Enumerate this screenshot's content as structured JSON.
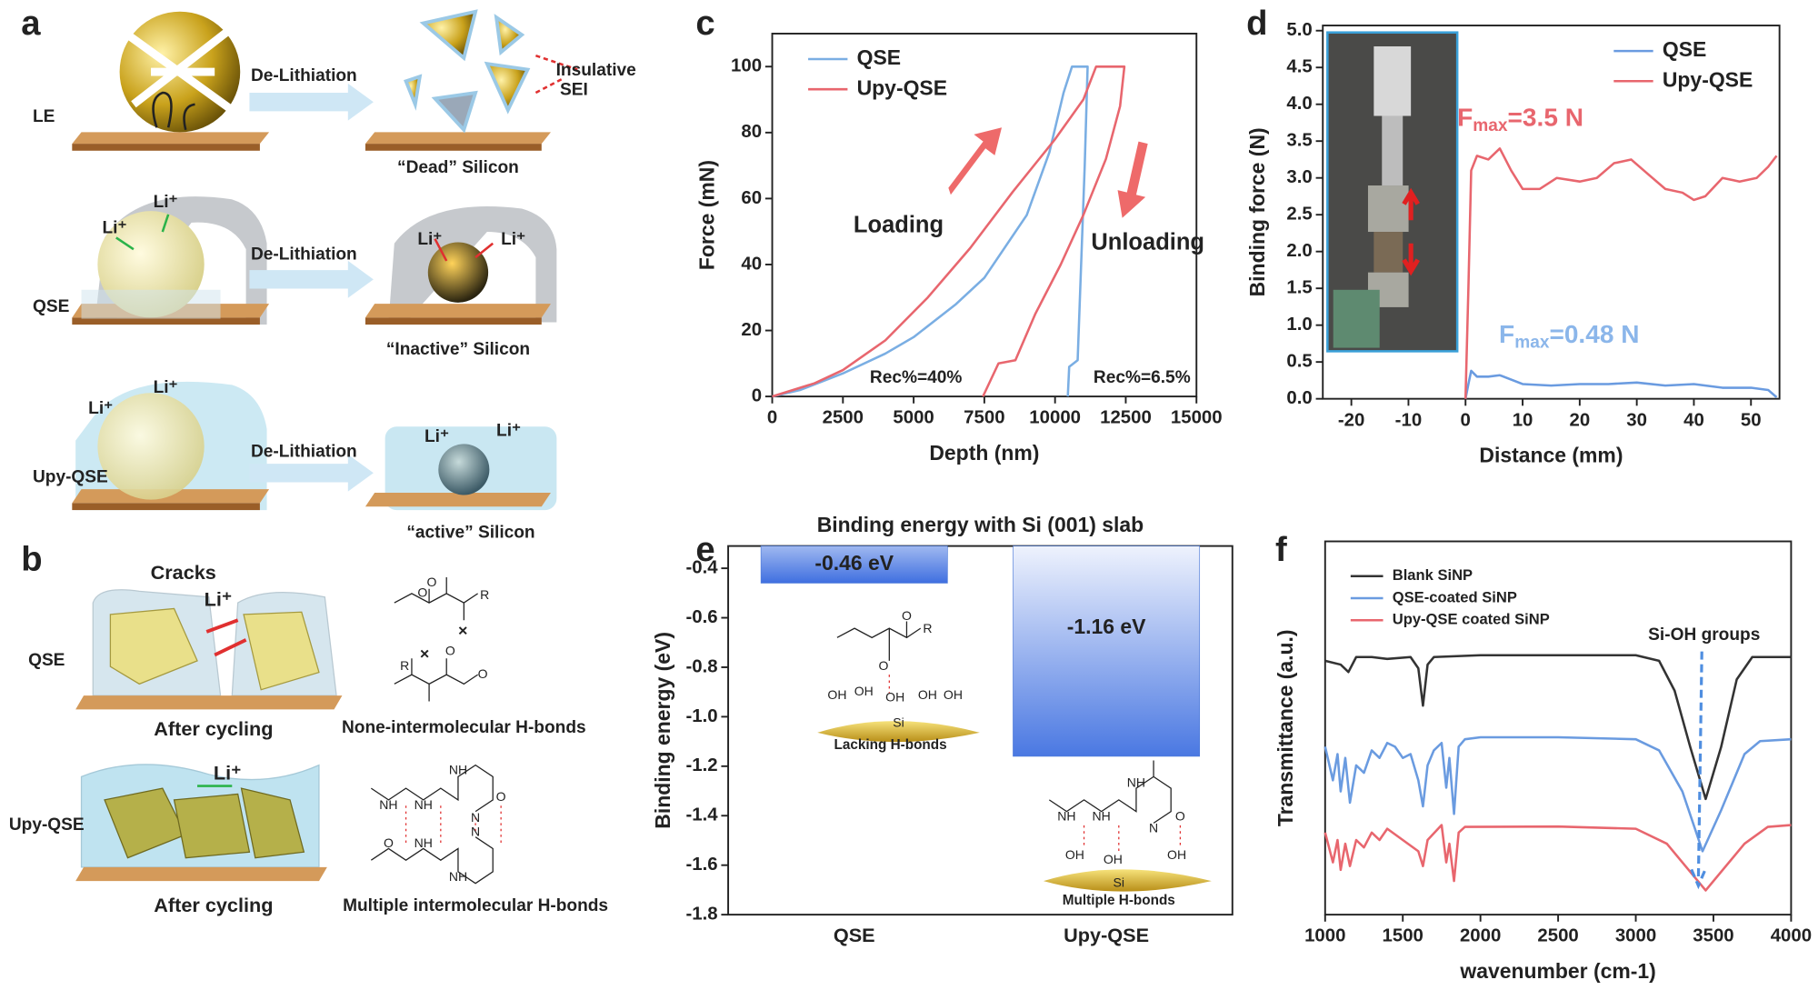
{
  "figure": {
    "a": {
      "label": "a",
      "rows": [
        {
          "name": "LE",
          "process": "De-Lithiation",
          "result": "“Dead” Silicon"
        },
        {
          "name": "QSE",
          "process": "De-Lithiation",
          "result": "“Inactive” Silicon"
        },
        {
          "name": "Upy-QSE",
          "process": "De-Lithiation",
          "result": "“active” Silicon"
        }
      ],
      "sei": "Insulative",
      "sei2": "SEI",
      "ion": "Li⁺"
    },
    "b": {
      "label": "b",
      "cracks": "Cracks",
      "ion": "Li⁺",
      "rows": [
        {
          "name": "QSE",
          "caption": "After cycling",
          "bond": "None-intermolecular H-bonds"
        },
        {
          "name": "Upy-QSE",
          "caption": "After cycling",
          "bond": "Multiple intermolecular H-bonds"
        }
      ],
      "atoms": {
        "O": "O",
        "R": "R",
        "N": "N",
        "NH": "NH"
      }
    }
  },
  "chart_data": [
    {
      "panel": "c",
      "type": "line",
      "xlabel": "Depth (nm)",
      "ylabel": "Force (mN)",
      "xlim": [
        0,
        15000
      ],
      "xticks": [
        0,
        2500,
        5000,
        7500,
        10000,
        12500,
        15000
      ],
      "ylim": [
        0,
        110
      ],
      "yticks": [
        0,
        20,
        40,
        60,
        80,
        100
      ],
      "legend": "upper left",
      "series": [
        {
          "name": "QSE",
          "color": "#7aaee3",
          "x": [
            0,
            1000,
            2500,
            4000,
            5000,
            6500,
            7500,
            9000,
            9800,
            10300,
            10600,
            11150,
            11050,
            10800,
            10500,
            10450
          ],
          "values": [
            0,
            2,
            7,
            13,
            18,
            28,
            36,
            55,
            74,
            92,
            100,
            100,
            70,
            11,
            9,
            0
          ]
        },
        {
          "name": "Upy-QSE",
          "color": "#e8666e",
          "x": [
            0,
            1500,
            2500,
            4000,
            5500,
            7000,
            8500,
            10000,
            11000,
            11450,
            12450,
            12300,
            11800,
            11000,
            10200,
            9300,
            8600,
            8000,
            7450
          ],
          "values": [
            0,
            4,
            8,
            17,
            30,
            45,
            62,
            78,
            90,
            100,
            100,
            88,
            72,
            55,
            40,
            25,
            11,
            10,
            0
          ]
        }
      ],
      "annotations": [
        {
          "text": "Loading",
          "color": "#222"
        },
        {
          "text": "Unloading",
          "color": "#222"
        },
        {
          "text": "Rec%=40%",
          "color": "#e8666e"
        },
        {
          "text": "Rec%=6.5%",
          "color": "#7aaee3"
        }
      ]
    },
    {
      "panel": "d",
      "type": "line",
      "xlabel": "Distance (mm)",
      "ylabel": "Binding force (N)",
      "xlim": [
        -25,
        55
      ],
      "xticks": [
        -20,
        -10,
        0,
        10,
        20,
        30,
        40,
        50
      ],
      "ylim": [
        0,
        5.07
      ],
      "yticks": [
        {
          "value": 0,
          "label": "0.0"
        },
        0.5,
        {
          "value": 1,
          "label": "1.0"
        },
        1.5,
        {
          "value": 2,
          "label": "2.0"
        },
        2.5,
        {
          "value": 3,
          "label": "3.0"
        },
        3.5,
        {
          "value": 4,
          "label": "4.0"
        },
        4.5,
        {
          "value": 5,
          "label": "5.0"
        }
      ],
      "legend": "upper right",
      "series": [
        {
          "name": "QSE",
          "color": "#6a9be0",
          "x": [
            0,
            0.5,
            1,
            2,
            4,
            6,
            10,
            15,
            20,
            25,
            30,
            35,
            40,
            45,
            50,
            53,
            54.5
          ],
          "values": [
            0,
            0.2,
            0.38,
            0.3,
            0.3,
            0.32,
            0.2,
            0.18,
            0.2,
            0.2,
            0.22,
            0.18,
            0.2,
            0.15,
            0.15,
            0.12,
            0.02
          ]
        },
        {
          "name": "Upy-QSE",
          "color": "#e8666e",
          "x": [
            0,
            0.5,
            1,
            2,
            4,
            6,
            8,
            10,
            13,
            16,
            20,
            23,
            26,
            29,
            32,
            35,
            38,
            40,
            42,
            45,
            48,
            51,
            53,
            54.5
          ],
          "values": [
            0,
            1.5,
            3.1,
            3.3,
            3.25,
            3.4,
            3.1,
            2.85,
            2.85,
            3.0,
            2.95,
            3.0,
            3.2,
            3.25,
            3.05,
            2.85,
            2.8,
            2.7,
            2.75,
            3.0,
            2.95,
            3.0,
            3.15,
            3.3
          ]
        }
      ],
      "annotations": [
        {
          "base": "F",
          "sub": "max",
          "rest": "=3.5 N",
          "color": "#e8666e"
        },
        {
          "base": "F",
          "sub": "max",
          "rest": "=0.48 N",
          "color": "#8bb6ea"
        }
      ]
    },
    {
      "panel": "e",
      "type": "bar",
      "title": "Binding energy with Si (001) slab",
      "ylabel": "Binding energy (eV)",
      "categories": [
        "QSE",
        "Upy-QSE"
      ],
      "values": [
        -0.46,
        -1.16
      ],
      "value_labels": [
        "-0.46 eV",
        "-1.16 eV"
      ],
      "ylim": [
        -1.8,
        -0.31
      ],
      "yticks": [
        -0.4,
        -0.6,
        -0.8,
        {
          "value": -1,
          "label": "-1.0"
        },
        -1.2,
        -1.4,
        -1.6,
        -1.8
      ],
      "color": "#4a78d8",
      "annotations": [
        "Lacking H-bonds",
        "Multiple H-bonds"
      ],
      "atoms": {
        "Si": "Si",
        "OH": "OH",
        "O": "O",
        "R": "R",
        "NH": "NH",
        "N": "N"
      }
    },
    {
      "panel": "f",
      "type": "line",
      "xlabel": "wavenumber (cm-1)",
      "ylabel": "Transmittance (a.u.)",
      "xlim": [
        1000,
        4000
      ],
      "xticks": [
        1000,
        1500,
        2000,
        2500,
        3000,
        3500,
        4000
      ],
      "ylim": [
        0,
        10
      ],
      "legend": "upper left",
      "series": [
        {
          "name": "Blank SiNP",
          "color": "#333333",
          "x": [
            1000,
            1100,
            1150,
            1200,
            1300,
            1400,
            1550,
            1600,
            1630,
            1660,
            1700,
            2000,
            2500,
            3000,
            3150,
            3250,
            3350,
            3450,
            3550,
            3650,
            3750,
            4000
          ],
          "values": [
            6.8,
            6.7,
            6.5,
            6.9,
            6.9,
            6.85,
            6.9,
            6.6,
            5.6,
            6.7,
            6.9,
            6.95,
            6.95,
            6.95,
            6.8,
            6.0,
            4.5,
            3.1,
            4.5,
            6.3,
            6.9,
            6.9
          ]
        },
        {
          "name": "QSE-coated SiNP",
          "color": "#6a9be0",
          "x": [
            1000,
            1050,
            1080,
            1100,
            1130,
            1160,
            1200,
            1250,
            1300,
            1350,
            1400,
            1450,
            1500,
            1550,
            1600,
            1630,
            1660,
            1700,
            1750,
            1780,
            1800,
            1830,
            1860,
            1900,
            2000,
            2500,
            3000,
            3150,
            3300,
            3430,
            3550,
            3700,
            3800,
            4000
          ],
          "values": [
            4.5,
            3.6,
            4.3,
            3.3,
            4.2,
            3.0,
            4.0,
            3.8,
            4.4,
            4.2,
            4.6,
            4.5,
            4.2,
            4.3,
            3.6,
            2.9,
            4.0,
            4.4,
            4.6,
            3.4,
            4.2,
            2.7,
            4.5,
            4.7,
            4.75,
            4.75,
            4.7,
            4.4,
            3.3,
            1.7,
            2.8,
            4.3,
            4.65,
            4.7
          ]
        },
        {
          "name": "Upy-QSE coated SiNP",
          "color": "#e8666e",
          "x": [
            1000,
            1050,
            1080,
            1100,
            1130,
            1160,
            1200,
            1250,
            1300,
            1350,
            1400,
            1500,
            1600,
            1630,
            1660,
            1750,
            1780,
            1800,
            1830,
            1860,
            1900,
            2500,
            3000,
            3200,
            3450,
            3700,
            3850,
            4000
          ],
          "values": [
            2.2,
            1.4,
            2.0,
            1.2,
            1.9,
            1.3,
            2.0,
            1.8,
            2.2,
            2.0,
            2.3,
            2.0,
            1.7,
            1.3,
            2.0,
            2.4,
            1.4,
            1.9,
            0.9,
            2.2,
            2.35,
            2.36,
            2.3,
            1.9,
            0.65,
            1.9,
            2.35,
            2.4
          ]
        }
      ],
      "annotations": [
        "Si-OH groups"
      ]
    }
  ]
}
